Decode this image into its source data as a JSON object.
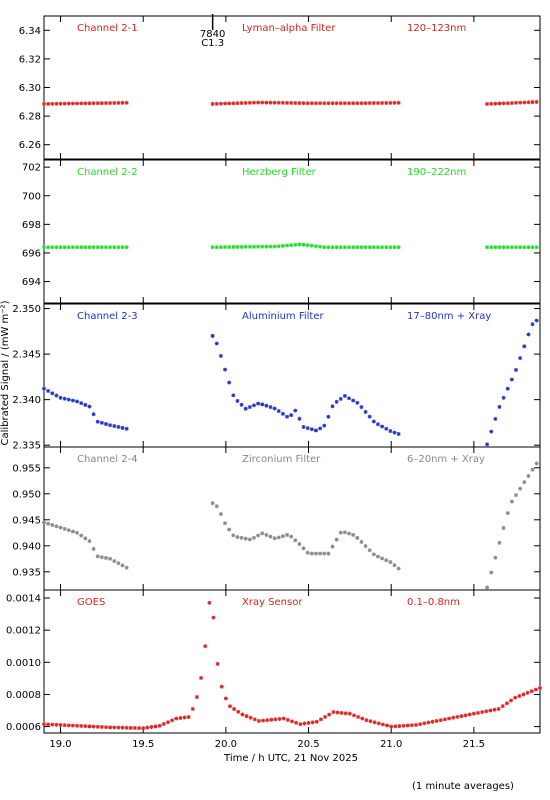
{
  "chart_data": {
    "type": "scatter",
    "xlabel": "Time / h UTC, 21 Nov 2025",
    "ylabel": "Calibrated Signal / (mW m⁻²)",
    "xlim": [
      18.9,
      21.9
    ],
    "x_ticks": [
      "19.0",
      "19.5",
      "20.0",
      "20.5",
      "21.0",
      "21.5"
    ],
    "x_tick_values": [
      19.0,
      19.5,
      20.0,
      20.5,
      21.0,
      21.5
    ],
    "note": "(1 minute averages)",
    "flare_marker": {
      "x": 19.92,
      "label_top": "7840",
      "label_bottom": "C1.3"
    },
    "panels": [
      {
        "name": "Channel 2-1",
        "filter": "Lyman–alpha Filter",
        "band": "120–123nm",
        "color": "#dd2222",
        "ylim": [
          6.25,
          6.35
        ],
        "y_ticks": [
          "6.26",
          "6.28",
          "6.30",
          "6.32",
          "6.34"
        ],
        "y_tick_values": [
          6.26,
          6.28,
          6.3,
          6.32,
          6.34
        ],
        "series": [
          [
            [
              18.9,
              6.2885
            ],
            [
              19.2,
              6.289
            ],
            [
              19.4,
              6.2893
            ]
          ],
          [
            [
              19.92,
              6.2885
            ],
            [
              20.2,
              6.2895
            ],
            [
              20.5,
              6.289
            ],
            [
              20.8,
              6.289
            ],
            [
              21.05,
              6.2893
            ]
          ],
          [
            [
              21.58,
              6.2885
            ],
            [
              21.7,
              6.289
            ],
            [
              21.9,
              6.29
            ]
          ]
        ]
      },
      {
        "name": "Channel 2-2",
        "filter": "Herzberg Filter",
        "band": "190–222nm",
        "color": "#22dd22",
        "ylim": [
          692.5,
          702.5
        ],
        "y_ticks": [
          "694",
          "696",
          "698",
          "700",
          "702"
        ],
        "y_tick_values": [
          694,
          696,
          698,
          700,
          702
        ],
        "series": [
          [
            [
              18.9,
              696.4
            ],
            [
              19.4,
              696.4
            ]
          ],
          [
            [
              19.92,
              696.4
            ],
            [
              20.3,
              696.45
            ],
            [
              20.45,
              696.6
            ],
            [
              20.6,
              696.4
            ],
            [
              21.05,
              696.4
            ]
          ],
          [
            [
              21.58,
              696.4
            ],
            [
              21.9,
              696.4
            ]
          ]
        ]
      },
      {
        "name": "Channel 2-3",
        "filter": "Aluminium Filter",
        "band": "17–80nm + Xray",
        "color": "#2233cc",
        "ylim": [
          2.3348,
          2.3505
        ],
        "y_ticks": [
          "2.335",
          "2.340",
          "2.345",
          "2.350"
        ],
        "y_tick_values": [
          2.335,
          2.34,
          2.345,
          2.35
        ],
        "series": [
          [
            [
              18.9,
              2.3412
            ],
            [
              19.0,
              2.3402
            ],
            [
              19.1,
              2.3398
            ],
            [
              19.18,
              2.3392
            ],
            [
              19.22,
              2.3376
            ],
            [
              19.3,
              2.3372
            ],
            [
              19.4,
              2.3368
            ]
          ],
          [
            [
              19.92,
              2.347
            ],
            [
              19.95,
              2.346
            ],
            [
              20.0,
              2.343
            ],
            [
              20.05,
              2.3402
            ],
            [
              20.12,
              2.339
            ],
            [
              20.2,
              2.3396
            ],
            [
              20.3,
              2.339
            ],
            [
              20.38,
              2.338
            ],
            [
              20.42,
              2.3388
            ],
            [
              20.47,
              2.337
            ],
            [
              20.55,
              2.3366
            ],
            [
              20.6,
              2.3372
            ],
            [
              20.65,
              2.3395
            ],
            [
              20.72,
              2.3404
            ],
            [
              20.8,
              2.3396
            ],
            [
              20.9,
              2.3375
            ],
            [
              21.0,
              2.3365
            ],
            [
              21.05,
              2.3362
            ]
          ],
          [
            [
              21.58,
              2.3351
            ],
            [
              21.65,
              2.339
            ],
            [
              21.75,
              2.343
            ],
            [
              21.85,
              2.3482
            ],
            [
              21.9,
              2.349
            ]
          ]
        ]
      },
      {
        "name": "Channel 2-4",
        "filter": "Zirconium Filter",
        "band": "6–20nm + Xray",
        "color": "#888888",
        "ylim": [
          0.9315,
          0.959
        ],
        "y_ticks": [
          "0.935",
          "0.940",
          "0.945",
          "0.950",
          "0.955"
        ],
        "y_tick_values": [
          0.935,
          0.94,
          0.945,
          0.95,
          0.955
        ],
        "series": [
          [
            [
              18.9,
              0.9445
            ],
            [
              19.0,
              0.9435
            ],
            [
              19.1,
              0.9425
            ],
            [
              19.18,
              0.9408
            ],
            [
              19.22,
              0.938
            ],
            [
              19.3,
              0.9375
            ],
            [
              19.4,
              0.9358
            ]
          ],
          [
            [
              19.92,
              0.9482
            ],
            [
              19.95,
              0.9475
            ],
            [
              20.0,
              0.944
            ],
            [
              20.05,
              0.9418
            ],
            [
              20.15,
              0.9412
            ],
            [
              20.22,
              0.9424
            ],
            [
              20.3,
              0.9414
            ],
            [
              20.38,
              0.9422
            ],
            [
              20.45,
              0.9402
            ],
            [
              20.5,
              0.9385
            ],
            [
              20.62,
              0.9385
            ],
            [
              20.7,
              0.9428
            ],
            [
              20.78,
              0.942
            ],
            [
              20.9,
              0.9382
            ],
            [
              21.0,
              0.9368
            ],
            [
              21.05,
              0.9355
            ]
          ],
          [
            [
              21.58,
              0.932
            ],
            [
              21.65,
              0.94
            ],
            [
              21.72,
              0.948
            ],
            [
              21.8,
              0.952
            ],
            [
              21.9,
              0.9568
            ]
          ]
        ]
      },
      {
        "name": "GOES",
        "filter": "Xray Sensor",
        "band": "0.1–0.8nm",
        "color": "#dd2222",
        "ylim": [
          0.00056,
          0.00145
        ],
        "y_ticks": [
          "0.0006",
          "0.0008",
          "0.0010",
          "0.0012",
          "0.0014"
        ],
        "y_tick_values": [
          0.0006,
          0.0008,
          0.001,
          0.0012,
          0.0014
        ],
        "series": [
          [
            [
              18.9,
              0.000615
            ],
            [
              19.1,
              0.000605
            ],
            [
              19.3,
              0.000595
            ],
            [
              19.5,
              0.00059
            ],
            [
              19.6,
              0.000605
            ],
            [
              19.7,
              0.00065
            ],
            [
              19.78,
              0.00066
            ],
            [
              19.82,
              0.00076
            ],
            [
              19.86,
              0.00095
            ],
            [
              19.89,
              0.00125
            ],
            [
              19.9,
              0.00137
            ],
            [
              19.93,
              0.00126
            ],
            [
              19.95,
              0.00099
            ],
            [
              19.98,
              0.00082
            ],
            [
              20.02,
              0.00073
            ],
            [
              20.1,
              0.000675
            ],
            [
              20.2,
              0.000635
            ],
            [
              20.35,
              0.00065
            ],
            [
              20.45,
              0.000615
            ],
            [
              20.55,
              0.00063
            ],
            [
              20.65,
              0.00069
            ],
            [
              20.75,
              0.00068
            ],
            [
              20.85,
              0.00064
            ],
            [
              21.0,
              0.0006
            ],
            [
              21.15,
              0.00061
            ],
            [
              21.3,
              0.00064
            ],
            [
              21.5,
              0.00068
            ],
            [
              21.65,
              0.00071
            ],
            [
              21.75,
              0.00078
            ],
            [
              21.9,
              0.00084
            ]
          ]
        ]
      }
    ]
  }
}
